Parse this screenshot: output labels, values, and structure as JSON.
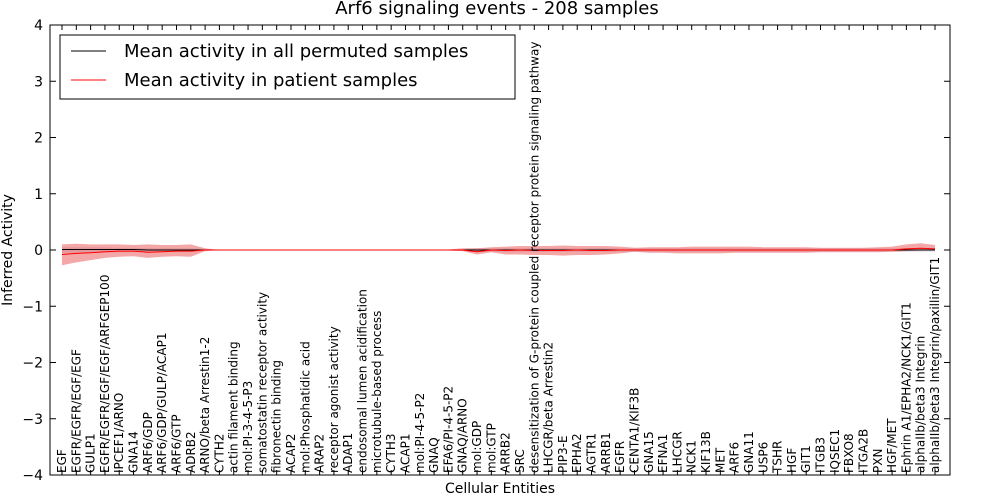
{
  "chart_data": {
    "type": "line",
    "title": "Arf6 signaling events - 208 samples",
    "xlabel": "Cellular Entities",
    "ylabel": "Inferred Activity",
    "ylim": [
      -4,
      4
    ],
    "yticks": [
      -4,
      -3,
      -2,
      -1,
      0,
      1,
      2,
      3,
      4
    ],
    "ytick_labels": [
      "−4",
      "−3",
      "−2",
      "−1",
      "0",
      "1",
      "2",
      "3",
      "4"
    ],
    "legend_position": "top-left",
    "categories": [
      "EGF",
      "EGFR/EGFR/EGF/EGF",
      "GULP1",
      "EGFR/EGFR/EGF/EGF/ARFGEP100",
      "IPCEF1/ARNO",
      "GNA14",
      "ARF6/GDP",
      "ARF6/GDP/GULP/ACAP1",
      "ARF6/GTP",
      "ADRB2",
      "ARNO/beta Arrestin1-2",
      "CYTH2",
      "actin filament binding",
      "mol:PI-3-4-5-P3",
      "somatostatin receptor activity",
      "fibronectin binding",
      "ACAP2",
      "mol:Phosphatidic acid",
      "ARAP2",
      "receptor agonist activity",
      "ADAP1",
      "endosomal lumen acidification",
      "microtubule-based process",
      "CYTH3",
      "ACAP1",
      "mol:PI-4-5-P2",
      "GNAQ",
      "EFA6/PI-4-5-P2",
      "GNAQ/ARNO",
      "mol:GDP",
      "mol:GTP",
      "ARRB2",
      "SRC",
      "desensitization of G-protein coupled receptor protein signaling pathway",
      "LHCGR/beta Arrestin2",
      "PIP3-E",
      "EPHA2",
      "AGTR1",
      "ARRB1",
      "EGFR",
      "CENTA1/KIF3B",
      "GNA15",
      "EFNA1",
      "LHCGR",
      "NCK1",
      "KIF13B",
      "MET",
      "ARF6",
      "GNA11",
      "USP6",
      "TSHR",
      "HGF",
      "GIT1",
      "ITGB3",
      "IQSEC1",
      "FBXO8",
      "ITGA2B",
      "PXN",
      "HGF/MET",
      "Ephrin A1/EPHA2/NCK1/GIT1",
      "alphaIIb/beta3 Integrin",
      "alphaIIb/beta3 Integrin/paxillin/GIT1"
    ],
    "series": [
      {
        "name": "Mean activity in all permuted samples",
        "color": "#000000",
        "values": [
          0.01,
          0.01,
          0.01,
          0.01,
          0.01,
          0.01,
          0.0,
          0.0,
          0.0,
          0.0,
          0.0,
          0.0,
          0.0,
          0.0,
          0.0,
          0.0,
          0.0,
          0.0,
          0.0,
          0.0,
          0.0,
          0.0,
          0.0,
          0.0,
          0.0,
          0.0,
          0.0,
          0.0,
          0.0,
          0.0,
          0.0,
          0.0,
          0.0,
          0.0,
          0.0,
          0.0,
          0.0,
          0.0,
          0.0,
          0.0,
          0.0,
          0.0,
          0.0,
          0.0,
          0.0,
          0.0,
          0.0,
          0.0,
          0.0,
          0.0,
          0.0,
          0.0,
          0.0,
          0.0,
          0.0,
          0.0,
          0.0,
          0.0,
          0.0,
          0.0,
          0.0,
          0.0
        ],
        "band_lower": [
          -0.05,
          -0.05,
          -0.05,
          -0.05,
          -0.04,
          -0.04,
          -0.03,
          -0.03,
          -0.03,
          -0.03,
          -0.02,
          -0.01,
          -0.01,
          -0.01,
          -0.01,
          -0.01,
          -0.01,
          -0.01,
          -0.01,
          -0.01,
          -0.01,
          -0.01,
          -0.01,
          -0.01,
          -0.01,
          -0.01,
          -0.01,
          -0.01,
          -0.02,
          -0.03,
          -0.03,
          -0.03,
          -0.03,
          -0.03,
          -0.03,
          -0.03,
          -0.03,
          -0.03,
          -0.03,
          -0.03,
          -0.03,
          -0.03,
          -0.03,
          -0.03,
          -0.03,
          -0.03,
          -0.03,
          -0.03,
          -0.03,
          -0.03,
          -0.03,
          -0.03,
          -0.03,
          -0.03,
          -0.03,
          -0.03,
          -0.03,
          -0.03,
          -0.03,
          -0.03,
          -0.03,
          -0.03
        ],
        "band_upper": [
          0.05,
          0.05,
          0.05,
          0.05,
          0.04,
          0.04,
          0.03,
          0.03,
          0.03,
          0.03,
          0.02,
          0.01,
          0.01,
          0.01,
          0.01,
          0.01,
          0.01,
          0.01,
          0.01,
          0.01,
          0.01,
          0.01,
          0.01,
          0.01,
          0.01,
          0.01,
          0.01,
          0.01,
          0.02,
          0.03,
          0.03,
          0.03,
          0.03,
          0.03,
          0.03,
          0.03,
          0.03,
          0.03,
          0.03,
          0.03,
          0.03,
          0.03,
          0.03,
          0.03,
          0.03,
          0.03,
          0.03,
          0.03,
          0.03,
          0.03,
          0.03,
          0.03,
          0.03,
          0.03,
          0.03,
          0.03,
          0.03,
          0.03,
          0.03,
          0.03,
          0.03,
          0.03
        ]
      },
      {
        "name": "Mean activity in patient samples",
        "color": "#ff0000",
        "values": [
          -0.08,
          -0.06,
          -0.05,
          -0.03,
          -0.02,
          -0.02,
          -0.04,
          -0.03,
          -0.02,
          -0.02,
          0.0,
          0.0,
          0.0,
          0.0,
          0.0,
          0.0,
          0.0,
          0.0,
          0.0,
          0.0,
          0.0,
          0.0,
          0.0,
          0.0,
          0.0,
          0.0,
          0.0,
          0.0,
          0.0,
          -0.03,
          0.0,
          -0.01,
          0.0,
          -0.01,
          -0.01,
          -0.01,
          0.0,
          -0.01,
          -0.01,
          0.0,
          0.0,
          0.0,
          0.0,
          0.0,
          0.0,
          0.0,
          0.0,
          0.0,
          0.0,
          0.0,
          0.0,
          0.0,
          0.0,
          0.0,
          0.0,
          0.0,
          0.0,
          0.0,
          0.0,
          0.02,
          0.03,
          0.02
        ],
        "band_lower": [
          -0.27,
          -0.22,
          -0.18,
          -0.14,
          -0.12,
          -0.11,
          -0.14,
          -0.12,
          -0.11,
          -0.12,
          -0.02,
          0.0,
          0.0,
          0.0,
          0.0,
          0.0,
          0.0,
          0.0,
          0.0,
          0.0,
          0.0,
          0.0,
          0.0,
          0.0,
          0.0,
          0.0,
          0.0,
          -0.01,
          -0.02,
          -0.08,
          -0.04,
          -0.08,
          -0.08,
          -0.09,
          -0.09,
          -0.1,
          -0.09,
          -0.09,
          -0.08,
          -0.06,
          -0.03,
          -0.05,
          -0.05,
          -0.06,
          -0.06,
          -0.06,
          -0.06,
          -0.05,
          -0.05,
          -0.05,
          -0.05,
          -0.05,
          -0.05,
          -0.04,
          -0.04,
          -0.04,
          -0.04,
          -0.04,
          -0.03,
          -0.02,
          -0.01,
          -0.01
        ],
        "band_upper": [
          0.1,
          0.11,
          0.1,
          0.1,
          0.1,
          0.09,
          0.1,
          0.09,
          0.09,
          0.1,
          0.03,
          0.0,
          0.0,
          0.0,
          0.0,
          0.0,
          0.0,
          0.0,
          0.0,
          0.0,
          0.0,
          0.0,
          0.0,
          0.0,
          0.0,
          0.0,
          0.0,
          0.01,
          0.03,
          0.03,
          0.05,
          0.06,
          0.07,
          0.07,
          0.07,
          0.08,
          0.07,
          0.07,
          0.07,
          0.06,
          0.04,
          0.05,
          0.05,
          0.05,
          0.06,
          0.06,
          0.06,
          0.06,
          0.06,
          0.05,
          0.05,
          0.05,
          0.05,
          0.04,
          0.04,
          0.04,
          0.04,
          0.05,
          0.06,
          0.1,
          0.12,
          0.09
        ]
      }
    ]
  }
}
